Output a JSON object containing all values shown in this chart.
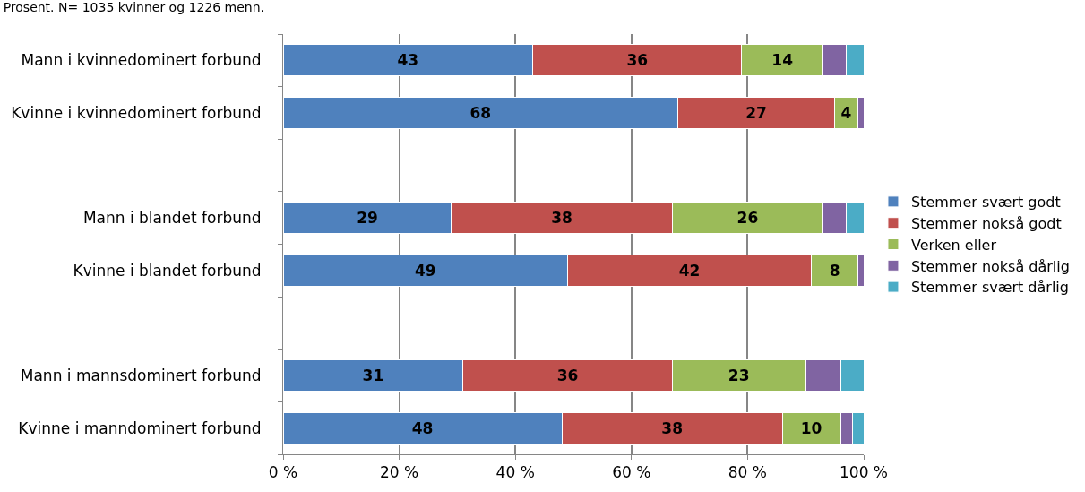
{
  "chart_data": {
    "type": "bar",
    "orientation": "horizontal",
    "stacked": true,
    "title": "Prosent. N= 1035 kvinner og 1226 menn.",
    "categories": [
      "Mann i kvinnedominert forbund",
      "Kvinne i kvinnedominert forbund",
      null,
      "Mann i blandet forbund",
      "Kvinne i blandet forbund",
      null,
      "Mann i mannsdominert forbund",
      "Kvinne i manndominert forbund"
    ],
    "series": [
      {
        "name": "Stemmer svært godt",
        "color": "#4f81bd",
        "values": [
          43,
          68,
          null,
          29,
          49,
          null,
          31,
          48
        ],
        "value_labels": [
          "43",
          "68",
          null,
          "29",
          "49",
          null,
          "31",
          "48"
        ]
      },
      {
        "name": "Stemmer nokså godt",
        "color": "#c0504d",
        "values": [
          36,
          27,
          null,
          38,
          42,
          null,
          36,
          38
        ],
        "value_labels": [
          "36",
          "27",
          null,
          "38",
          "42",
          null,
          "36",
          "38"
        ]
      },
      {
        "name": "Verken eller",
        "color": "#9bbb59",
        "values": [
          14,
          4,
          null,
          26,
          8,
          null,
          23,
          10
        ],
        "value_labels": [
          "14",
          "4",
          null,
          "26",
          "8",
          null,
          "23",
          "10"
        ]
      },
      {
        "name": "Stemmer nokså dårlig",
        "color": "#8064a2",
        "values": [
          4,
          1,
          null,
          4,
          1,
          null,
          6,
          2
        ],
        "value_labels": [
          null,
          null,
          null,
          null,
          null,
          null,
          null,
          null
        ]
      },
      {
        "name": "Stemmer svært dårlig",
        "color": "#4bacc6",
        "values": [
          3,
          null,
          null,
          3,
          null,
          null,
          4,
          2
        ],
        "value_labels": [
          null,
          null,
          null,
          null,
          null,
          null,
          null,
          null
        ]
      }
    ],
    "xlim": [
      0,
      100
    ],
    "xticks": [
      {
        "value": 0,
        "label": "0 %"
      },
      {
        "value": 20,
        "label": "20 %"
      },
      {
        "value": 40,
        "label": "40 %"
      },
      {
        "value": 60,
        "label": "60 %"
      },
      {
        "value": 80,
        "label": "80 %"
      },
      {
        "value": 100,
        "label": "100 %"
      }
    ],
    "grid": "x",
    "legend": "right"
  }
}
